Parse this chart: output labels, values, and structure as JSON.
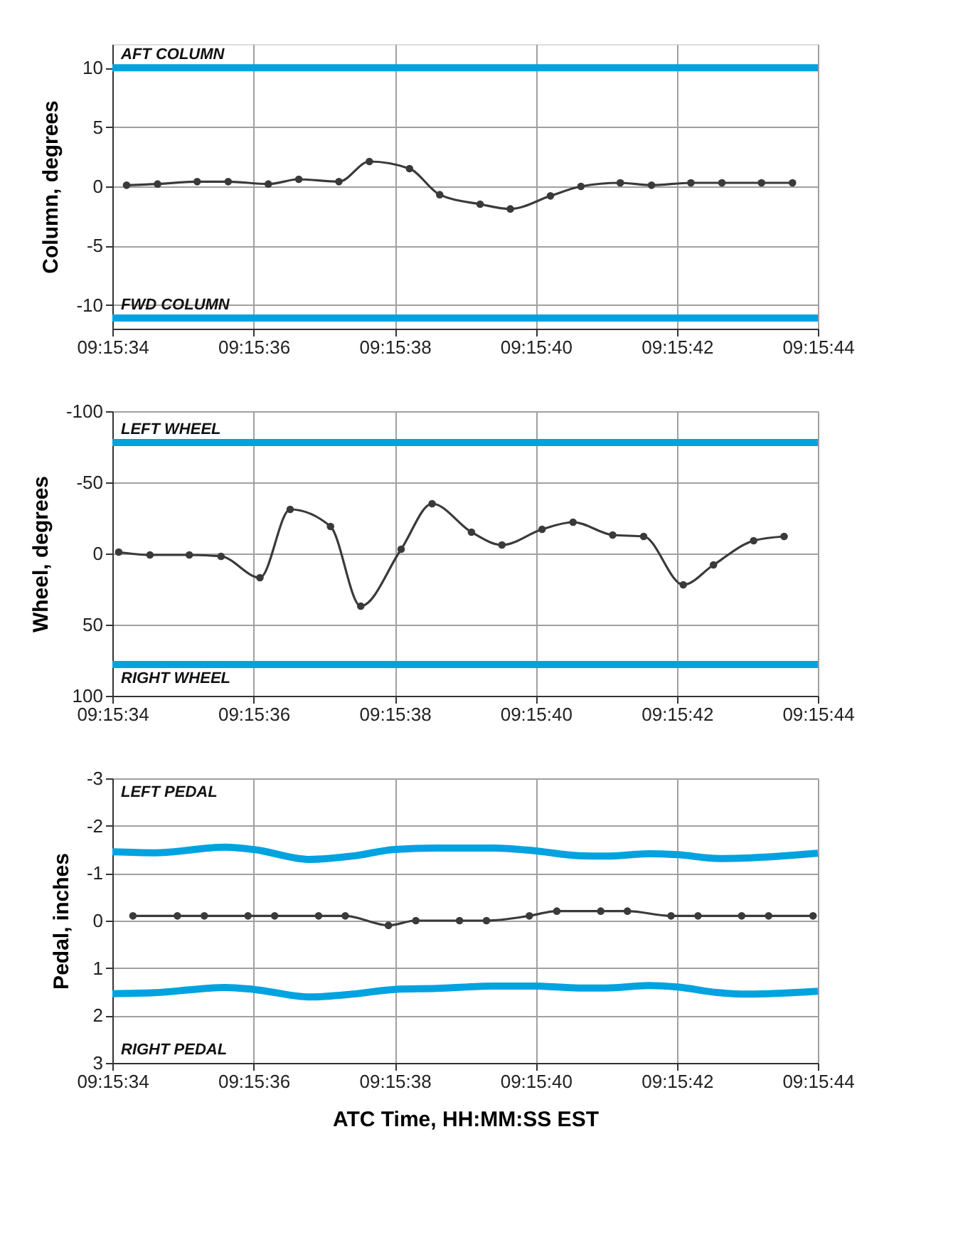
{
  "chart_data": [
    {
      "type": "line",
      "ylabel": "Column, degrees",
      "grid": true,
      "xlim": [
        9.259444,
        9.262222
      ],
      "ylim": [
        -12,
        12
      ],
      "yticks": [
        -10,
        -5,
        0,
        5,
        10
      ],
      "xticks": [
        {
          "value": 9.259444,
          "label": "09:15:34"
        },
        {
          "value": 9.26,
          "label": "09:15:36"
        },
        {
          "value": 9.260556,
          "label": "09:15:38"
        },
        {
          "value": 9.261111,
          "label": "09:15:40"
        },
        {
          "value": 9.261667,
          "label": "09:15:42"
        },
        {
          "value": 9.262222,
          "label": "09:15:44"
        }
      ],
      "ref_lines": [
        {
          "axis": "y",
          "value": 10,
          "label": "AFT COLUMN",
          "color": "#00a3e0"
        },
        {
          "axis": "y",
          "value": -11.1,
          "label": "FWD COLUMN",
          "color": "#00a3e0"
        }
      ],
      "series": [
        {
          "color": "#3a3a3a",
          "marker": "circle",
          "x": [
            9.2595,
            9.259622,
            9.259778,
            9.2599,
            9.260058,
            9.260178,
            9.260336,
            9.260456,
            9.260614,
            9.260733,
            9.260892,
            9.261011,
            9.261169,
            9.261289,
            9.261444,
            9.261567,
            9.261722,
            9.261844,
            9.262,
            9.262122
          ],
          "values": [
            0.1,
            0.2,
            0.4,
            0.4,
            0.2,
            0.6,
            0.4,
            2.1,
            1.5,
            -0.7,
            -1.5,
            -1.9,
            -0.8,
            0.0,
            0.3,
            0.1,
            0.3,
            0.3,
            0.3,
            0.3
          ]
        }
      ]
    },
    {
      "type": "line",
      "ylabel": "Wheel, degrees",
      "grid": true,
      "xlim": [
        9.259444,
        9.262222
      ],
      "ylim": [
        100,
        -100
      ],
      "yticks": [
        -100,
        -50,
        0,
        50,
        100
      ],
      "xticks": [
        {
          "value": 9.259444,
          "label": "09:15:34"
        },
        {
          "value": 9.26,
          "label": "09:15:36"
        },
        {
          "value": 9.260556,
          "label": "09:15:38"
        },
        {
          "value": 9.261111,
          "label": "09:15:40"
        },
        {
          "value": 9.261667,
          "label": "09:15:42"
        },
        {
          "value": 9.262222,
          "label": "09:15:44"
        }
      ],
      "ref_lines": [
        {
          "axis": "y",
          "value": -78,
          "label": "LEFT WHEEL",
          "color": "#00a3e0"
        },
        {
          "axis": "y",
          "value": 78,
          "label": "RIGHT WHEEL",
          "color": "#00a3e0"
        }
      ],
      "series": [
        {
          "color": "#3a3a3a",
          "marker": "circle",
          "x": [
            9.259469,
            9.259592,
            9.259747,
            9.259872,
            9.260025,
            9.260144,
            9.260303,
            9.260422,
            9.260581,
            9.260703,
            9.260858,
            9.260978,
            9.261136,
            9.261258,
            9.261414,
            9.261536,
            9.261692,
            9.261811,
            9.261969,
            9.262089
          ],
          "values": [
            -1,
            1,
            1,
            2,
            17,
            -31,
            -19,
            37,
            -3,
            -35,
            -15,
            -6,
            -17,
            -22,
            -13,
            -12,
            22,
            8,
            -9,
            -12
          ]
        }
      ]
    },
    {
      "type": "line",
      "ylabel": "Pedal, inches",
      "xlabel": "ATC Time, HH:MM:SS EST",
      "grid": true,
      "xlim": [
        9.259444,
        9.262222
      ],
      "ylim": [
        3,
        -3
      ],
      "yticks": [
        -3,
        -2,
        -1,
        0,
        1,
        2,
        3
      ],
      "xticks": [
        {
          "value": 9.259444,
          "label": "09:15:34"
        },
        {
          "value": 9.26,
          "label": "09:15:36"
        },
        {
          "value": 9.260556,
          "label": "09:15:38"
        },
        {
          "value": 9.261111,
          "label": "09:15:40"
        },
        {
          "value": 9.261667,
          "label": "09:15:42"
        },
        {
          "value": 9.262222,
          "label": "09:15:44"
        }
      ],
      "annotations": [
        "LEFT PEDAL",
        "RIGHT PEDAL"
      ],
      "series": [
        {
          "color": "#00a3e0",
          "marker": "none",
          "x": [
            9.259444,
            9.259611,
            9.259889,
            9.26,
            9.260222,
            9.260389,
            9.260556,
            9.260722,
            9.260944,
            9.261111,
            9.261278,
            9.261389,
            9.261556,
            9.261667,
            9.261833,
            9.261944,
            9.262222
          ],
          "values": [
            -1.45,
            -1.43,
            -1.55,
            -1.5,
            -1.29,
            -1.36,
            -1.5,
            -1.53,
            -1.53,
            -1.47,
            -1.37,
            -1.36,
            -1.41,
            -1.39,
            -1.31,
            -1.32,
            -1.42
          ]
        },
        {
          "color": "#00a3e0",
          "marker": "none",
          "x": [
            9.259444,
            9.259611,
            9.259889,
            9.26,
            9.260222,
            9.260389,
            9.260556,
            9.260722,
            9.260944,
            9.261111,
            9.261278,
            9.261389,
            9.261556,
            9.261667,
            9.261833,
            9.261944,
            9.262222
          ],
          "values": [
            1.54,
            1.52,
            1.41,
            1.45,
            1.61,
            1.55,
            1.45,
            1.43,
            1.38,
            1.38,
            1.42,
            1.42,
            1.37,
            1.4,
            1.52,
            1.55,
            1.49
          ]
        },
        {
          "color": "#3a3a3a",
          "marker": "circle",
          "x": [
            9.259525,
            9.2597,
            9.259806,
            9.259978,
            9.260083,
            9.260256,
            9.260361,
            9.260531,
            9.260639,
            9.260811,
            9.260917,
            9.261086,
            9.261194,
            9.261367,
            9.261472,
            9.261644,
            9.26175,
            9.261922,
            9.262028,
            9.262203
          ],
          "values": [
            -0.1,
            -0.1,
            -0.1,
            -0.1,
            -0.1,
            -0.1,
            -0.1,
            0.1,
            0.0,
            0.0,
            0.0,
            -0.1,
            -0.2,
            -0.2,
            -0.2,
            -0.1,
            -0.1,
            -0.1,
            -0.1,
            -0.1
          ]
        }
      ]
    }
  ]
}
